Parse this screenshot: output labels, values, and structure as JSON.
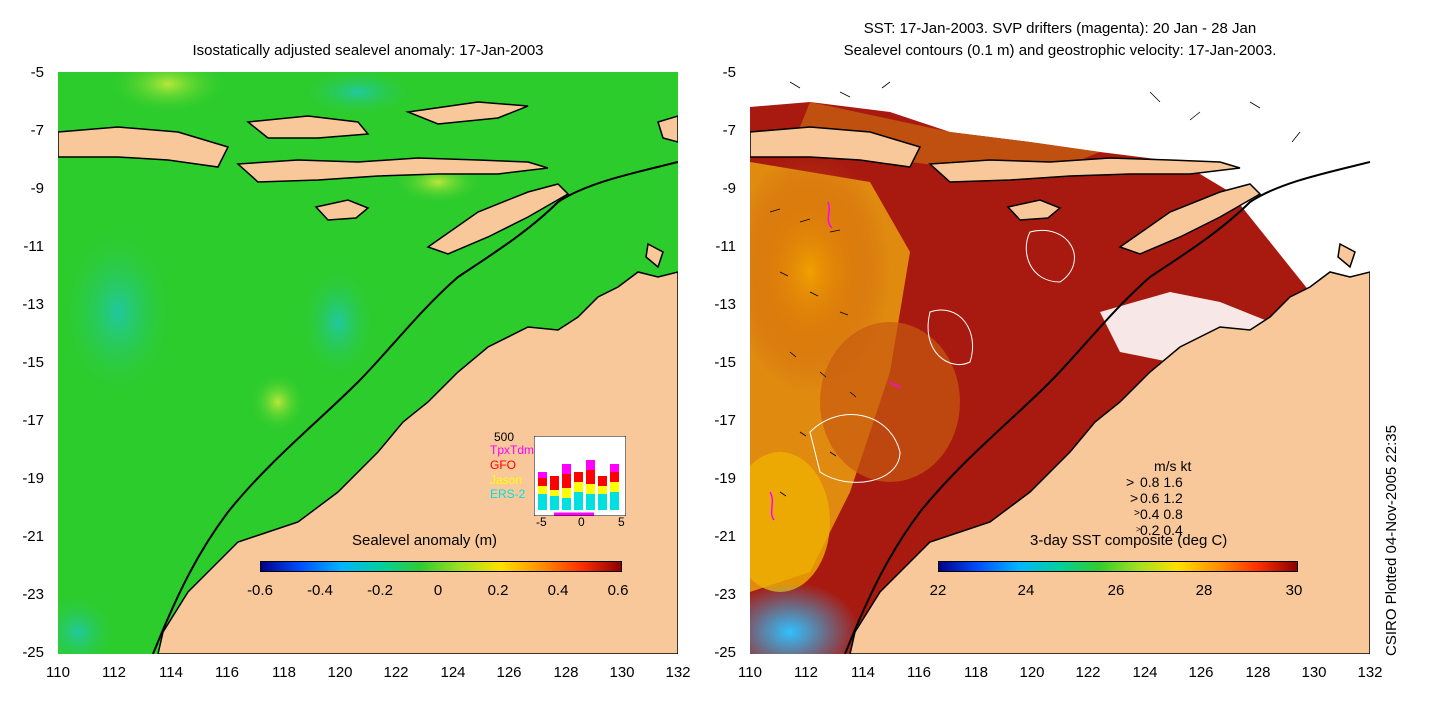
{
  "left_panel": {
    "title": "Isostatically adjusted sealevel anomaly: 17-Jan-2003",
    "colorbar": {
      "title": "Sealevel anomaly (m)",
      "labels": [
        "-0.6",
        "-0.4",
        "-0.2",
        "0",
        "0.2",
        "0.4",
        "0.6"
      ]
    },
    "inset": {
      "max_label": "500",
      "missions": [
        {
          "name": "TpxTdm",
          "color": "#ff00ff"
        },
        {
          "name": "GFO",
          "color": "#ff0000"
        },
        {
          "name": "Jason",
          "color": "#ffff00"
        },
        {
          "name": "ERS-2",
          "color": "#00e0e0"
        }
      ],
      "x_labels": [
        "-5",
        "0",
        "5"
      ]
    }
  },
  "right_panel": {
    "title_line1": "SST: 17-Jan-2003. SVP drifters (magenta): 20 Jan - 28 Jan",
    "title_line2": "Sealevel contours (0.1 m) and geostrophic velocity: 17-Jan-2003.",
    "colorbar": {
      "title": "3-day SST composite (deg C)",
      "labels": [
        "22",
        "24",
        "26",
        "28",
        "30"
      ]
    },
    "velocity_legend": {
      "header": "m/s  kt",
      "rows": [
        "0.8  1.6",
        "0.6  1.2",
        "0.4  0.8",
        "0.2  0.4"
      ]
    }
  },
  "axes": {
    "y_ticks": [
      "-5",
      "-7",
      "-9",
      "-11",
      "-13",
      "-15",
      "-17",
      "-19",
      "-21",
      "-23",
      "-25"
    ],
    "x_ticks": [
      "110",
      "112",
      "114",
      "116",
      "118",
      "120",
      "122",
      "124",
      "126",
      "128",
      "130",
      "132"
    ]
  },
  "credit": "CSIRO Plotted 04-Nov-2005 22:35",
  "colors": {
    "land": "#f9c89a",
    "sea_green": "#22cc22",
    "sea_warm": "#a01010"
  }
}
